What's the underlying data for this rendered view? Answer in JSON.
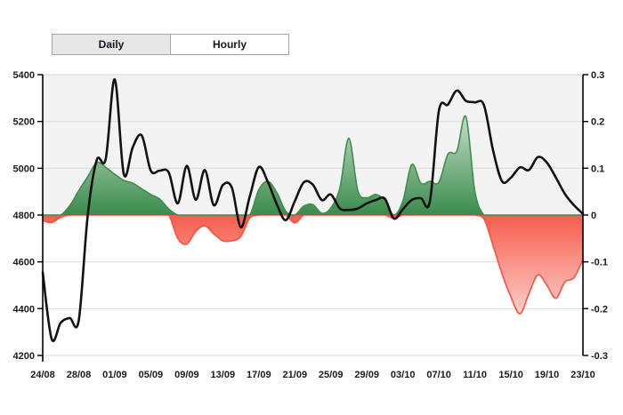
{
  "tabs": [
    {
      "label": "Daily",
      "active": true
    },
    {
      "label": "Hourly",
      "active": false
    }
  ],
  "colors": {
    "line": "#121212",
    "positive_fill": "#3a8b4b",
    "positive_stroke": "#3f8d4f",
    "negative_fill": "#f65c4c",
    "negative_stroke": "#f5523f",
    "grid": "#d9d9d9",
    "axis": "#000000",
    "band_background": "#f3f3f3",
    "label_text": "#1a1a1a",
    "tab_active_bg": "#e7e7e7",
    "tab_border": "#a6a6a6"
  },
  "chart_data": {
    "type": "line",
    "title": "",
    "xlabel": "",
    "ylabel_left": "",
    "ylabel_right": "",
    "grid": "horizontal",
    "legend": "none",
    "left_axis": {
      "min": 4200,
      "max": 5400,
      "tick_labels": [
        "5400",
        "5200",
        "5000",
        "4800",
        "4600",
        "4400",
        "4200"
      ],
      "tick_values": [
        5400,
        5200,
        5000,
        4800,
        4600,
        4400,
        4200
      ]
    },
    "right_axis": {
      "min": -0.3,
      "max": 0.3,
      "tick_labels": [
        "0.3",
        "0.2",
        "0.1",
        "0",
        "-0.1",
        "-0.2",
        "-0.3"
      ],
      "tick_values": [
        0.3,
        0.2,
        0.1,
        0,
        -0.1,
        -0.2,
        -0.3
      ]
    },
    "x_tick_labels": [
      "24/08",
      "28/08",
      "01/09",
      "05/09",
      "09/09",
      "13/09",
      "17/09",
      "21/09",
      "25/09",
      "29/09",
      "03/10",
      "07/10",
      "11/10",
      "15/10",
      "19/10",
      "23/10"
    ],
    "x_tick_step": 4,
    "dates": [
      "24/08",
      "25/08",
      "26/08",
      "27/08",
      "28/08",
      "29/08",
      "30/08",
      "31/08",
      "01/09",
      "02/09",
      "03/09",
      "04/09",
      "05/09",
      "06/09",
      "07/09",
      "08/09",
      "09/09",
      "10/09",
      "11/09",
      "12/09",
      "13/09",
      "14/09",
      "15/09",
      "16/09",
      "17/09",
      "18/09",
      "19/09",
      "20/09",
      "21/09",
      "22/09",
      "23/09",
      "24/09",
      "25/09",
      "26/09",
      "27/09",
      "28/09",
      "29/09",
      "30/09",
      "01/10",
      "02/10",
      "03/10",
      "04/10",
      "05/10",
      "06/10",
      "07/10",
      "08/10",
      "09/10",
      "10/10",
      "11/10",
      "12/10",
      "13/10",
      "14/10",
      "15/10",
      "16/10",
      "17/10",
      "18/10",
      "19/10",
      "20/10",
      "21/10",
      "22/10",
      "23/10"
    ],
    "series": [
      {
        "name": "price",
        "type": "line",
        "axis": "left",
        "values": [
          4555,
          4270,
          4340,
          4360,
          4350,
          4800,
          5035,
          5040,
          5380,
          4975,
          5090,
          5140,
          4990,
          4990,
          4982,
          4850,
          5010,
          4865,
          4992,
          4842,
          4928,
          4918,
          4748,
          4880,
          5005,
          4942,
          4846,
          4778,
          4860,
          4940,
          4930,
          4864,
          4888,
          4828,
          4822,
          4828,
          4850,
          4864,
          4870,
          4785,
          4825,
          4865,
          4872,
          4858,
          5245,
          5272,
          5332,
          5288,
          5282,
          5270,
          5080,
          4945,
          4960,
          5004,
          4992,
          5048,
          5024,
          4960,
          4890,
          4842,
          4805
        ]
      },
      {
        "name": "oscillator",
        "type": "area",
        "axis": "right",
        "values": [
          -0.012,
          -0.016,
          -0.005,
          0.02,
          0.052,
          0.082,
          0.112,
          0.102,
          0.087,
          0.074,
          0.068,
          0.056,
          0.044,
          0.034,
          0.013,
          -0.05,
          -0.062,
          -0.035,
          -0.023,
          -0.04,
          -0.055,
          -0.055,
          -0.046,
          -0.006,
          0.054,
          0.072,
          0.048,
          0.008,
          -0.017,
          0.019,
          0.022,
          0.004,
          0.015,
          0.058,
          0.164,
          0.052,
          0.037,
          0.044,
          0.031,
          -0.007,
          0.03,
          0.108,
          0.068,
          0.072,
          0.07,
          0.13,
          0.137,
          0.21,
          0.05,
          -0.008,
          -0.064,
          -0.125,
          -0.175,
          -0.211,
          -0.168,
          -0.128,
          -0.15,
          -0.178,
          -0.143,
          -0.134,
          -0.095
        ]
      }
    ]
  }
}
